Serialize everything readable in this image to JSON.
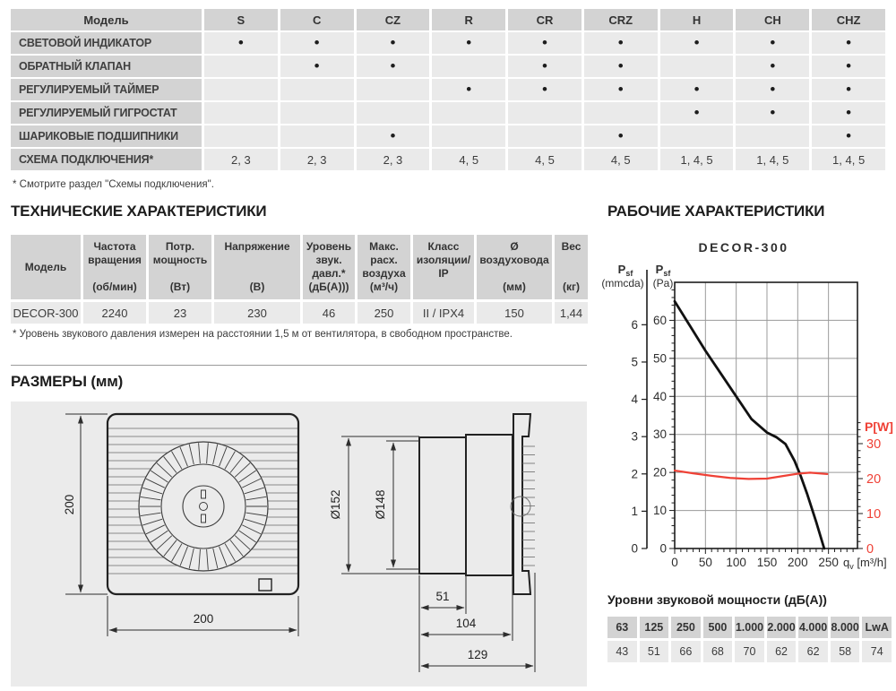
{
  "colors": {
    "accent_red": "#ef4136",
    "header_cell": "#d3d3d3",
    "data_cell": "#eaeaea",
    "panel_bg": "#ebebeb"
  },
  "features_table": {
    "model_header": "Модель",
    "bullet": "•",
    "columns": [
      "S",
      "C",
      "CZ",
      "R",
      "CR",
      "CRZ",
      "H",
      "CH",
      "CHZ"
    ],
    "rows": [
      {
        "label": "СВЕТОВОЙ ИНДИКАТОР",
        "values": [
          1,
          1,
          1,
          1,
          1,
          1,
          1,
          1,
          1
        ]
      },
      {
        "label": "ОБРАТНЫЙ КЛАПАН",
        "values": [
          0,
          1,
          1,
          0,
          1,
          1,
          0,
          1,
          1
        ]
      },
      {
        "label": "РЕГУЛИРУЕМЫЙ ТАЙМЕР",
        "values": [
          0,
          0,
          0,
          1,
          1,
          1,
          1,
          1,
          1
        ]
      },
      {
        "label": "РЕГУЛИРУЕМЫЙ ГИГРОСТАТ",
        "values": [
          0,
          0,
          0,
          0,
          0,
          0,
          1,
          1,
          1
        ]
      },
      {
        "label": "ШАРИКОВЫЕ ПОДШИПНИКИ",
        "values": [
          0,
          0,
          1,
          0,
          0,
          1,
          0,
          0,
          1
        ]
      },
      {
        "label": "СХЕМА ПОДКЛЮЧЕНИЯ*",
        "values": [
          "2, 3",
          "2, 3",
          "2, 3",
          "4, 5",
          "4, 5",
          "4, 5",
          "1, 4, 5",
          "1, 4, 5",
          "1, 4, 5"
        ]
      }
    ],
    "footnote": "* Смотрите раздел \"Схемы подключения\"."
  },
  "tech_section": {
    "title": "ТЕХНИЧЕСКИЕ ХАРАКТЕРИСТИКИ",
    "headers": [
      {
        "title": "Модель",
        "unit": "",
        "center": true
      },
      {
        "title": "Частота вращения",
        "unit": "(об/мин)"
      },
      {
        "title": "Потр. мощность",
        "unit": "(Вт)"
      },
      {
        "title": "Напряжение",
        "unit": "(В)"
      },
      {
        "title": "Уровень звук. давл.*",
        "unit": "(дБ(А)))"
      },
      {
        "title": "Макс. расх. воздуха",
        "unit": "(м³/ч)"
      },
      {
        "title": "Класс изоляции/ IP",
        "unit": ""
      },
      {
        "title": "Ø воздуховода",
        "unit": "(мм)"
      },
      {
        "title": "Вес",
        "unit": "(кг)"
      }
    ],
    "row": [
      "DECOR-300",
      "2240",
      "23",
      "230",
      "46",
      "250",
      "II / IPX4",
      "150",
      "1,44"
    ],
    "footnote": "* Уровень звукового давления измерен на расстоянии 1,5 м от вентилятора, в свободном пространстве."
  },
  "dimensions": {
    "section_title": "РАЗМЕРЫ (мм)",
    "front_height": "200",
    "front_width": "200",
    "duct_outer": "Ø152",
    "duct_inner": "Ø148",
    "dim_51": "51",
    "dim_104": "104",
    "dim_129": "129"
  },
  "performance_section": {
    "title": "РАБОЧИЕ ХАРАКТЕРИСТИКИ"
  },
  "chart_data": {
    "type": "line",
    "title": "DECOR-300",
    "x_axis": {
      "label": "qv [m³/h]",
      "label_main": "q",
      "label_sub": "v",
      "label_unit": "[m³/h]",
      "ticks": [
        0,
        50,
        100,
        150,
        200,
        250
      ],
      "max": 297
    },
    "y_axis_pa": {
      "label": "Psf (Pa)",
      "label_main": "P",
      "label_sub": "sf",
      "unit": "(Pa)",
      "ticks": [
        0,
        10,
        20,
        30,
        40,
        50,
        60
      ],
      "max": 70
    },
    "y_axis_mmcda": {
      "label": "Psf (mmcda)",
      "label_main": "P",
      "label_sub": "sf",
      "unit": "(mmcda)",
      "ticks": [
        0,
        1,
        2,
        3,
        4,
        5,
        6
      ]
    },
    "y_axis_watt": {
      "label": "P[W]",
      "ticks": [
        0,
        10,
        20,
        30
      ],
      "color": "#ef4136"
    },
    "grid": true,
    "series": [
      {
        "name": "pressure",
        "color": "#111111",
        "unit": "Pa",
        "points": [
          [
            0,
            65
          ],
          [
            25,
            58.5
          ],
          [
            50,
            52
          ],
          [
            75,
            46
          ],
          [
            100,
            40
          ],
          [
            125,
            34
          ],
          [
            150,
            30.5
          ],
          [
            165,
            29.3
          ],
          [
            180,
            27.5
          ],
          [
            195,
            23
          ],
          [
            205,
            19
          ],
          [
            215,
            14.5
          ],
          [
            230,
            7
          ],
          [
            243,
            0
          ]
        ]
      },
      {
        "name": "power",
        "color": "#ef4136",
        "unit": "W",
        "points": [
          [
            0,
            22.3
          ],
          [
            30,
            21.5
          ],
          [
            60,
            20.8
          ],
          [
            90,
            20.2
          ],
          [
            120,
            19.9
          ],
          [
            150,
            20
          ],
          [
            175,
            20.7
          ],
          [
            200,
            21.4
          ],
          [
            220,
            21.7
          ],
          [
            248,
            21.3
          ]
        ]
      }
    ]
  },
  "sound_table": {
    "title": "Уровни звуковой мощности (дБ(А))",
    "headers": [
      "63",
      "125",
      "250",
      "500",
      "1.000",
      "2.000",
      "4.000",
      "8.000",
      "LwA"
    ],
    "values": [
      "43",
      "51",
      "66",
      "68",
      "70",
      "62",
      "62",
      "58",
      "74"
    ]
  }
}
